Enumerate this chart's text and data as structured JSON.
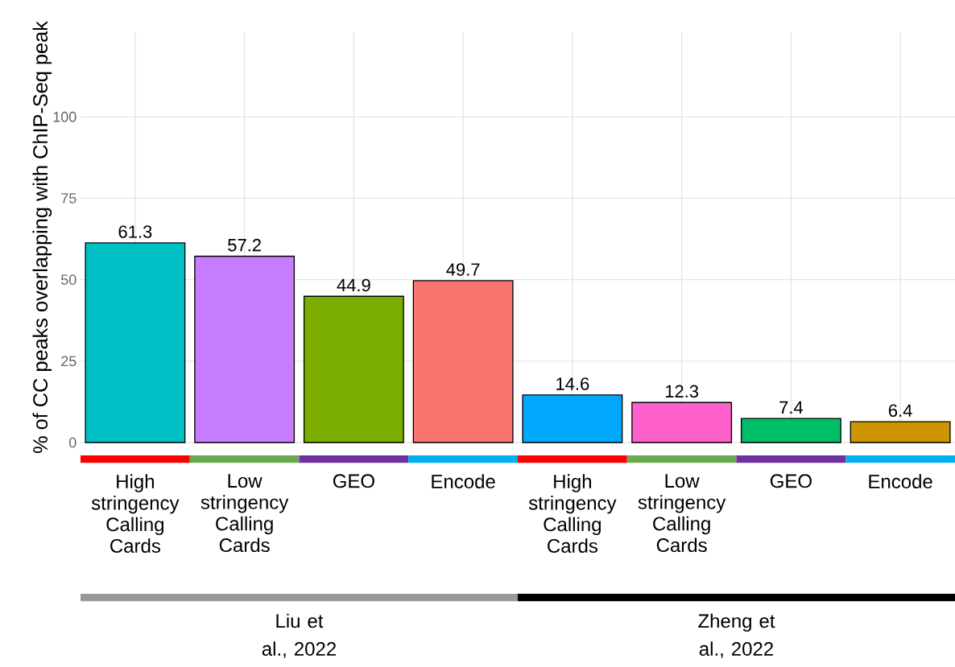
{
  "chart_data": {
    "type": "bar",
    "ylabel": "% of CC peaks overlapping with ChIP-Seq peak",
    "categories": [
      "High stringency Calling Cards",
      "Low stringency Calling Cards",
      "GEO",
      "Encode",
      "High stringency Calling Cards",
      "Low stringency Calling Cards",
      "GEO",
      "Encode"
    ],
    "values": [
      61.3,
      57.2,
      44.9,
      49.7,
      14.6,
      12.3,
      7.4,
      6.4
    ],
    "colors": [
      "#00bfc4",
      "#c77cff",
      "#7cae00",
      "#f8766d",
      "#00a9ff",
      "#ff61cc",
      "#00be67",
      "#cd9600"
    ],
    "ylim": [
      0,
      126
    ],
    "yticks": [
      0,
      25,
      50,
      75,
      100
    ],
    "grid": true,
    "data_labels": true,
    "annotations": [
      "Liu et al., 2022",
      "Zheng et al., 2022"
    ]
  }
}
